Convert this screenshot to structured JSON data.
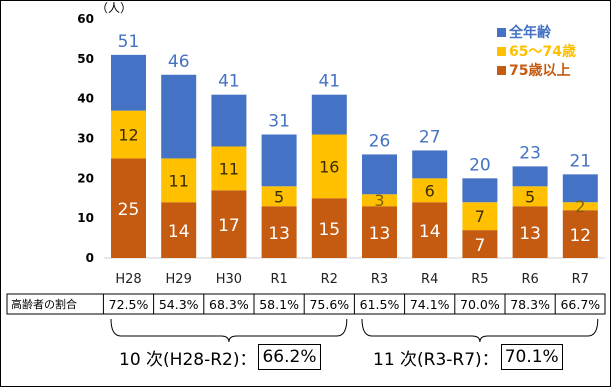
{
  "chart_data": {
    "type": "bar",
    "stacked": true,
    "unit_label": "（人）",
    "ylim": [
      0,
      60
    ],
    "yticks": [
      0,
      10,
      20,
      30,
      40,
      50,
      60
    ],
    "grid": false,
    "legend_position": "top-right",
    "categories": [
      "H28",
      "H29",
      "H30",
      "R1",
      "R2",
      "R3",
      "R4",
      "R5",
      "R6",
      "R7"
    ],
    "totals": {
      "name": "全年齢",
      "color": "#4472C4",
      "label_color": "#4472C4",
      "values": [
        51,
        46,
        41,
        31,
        41,
        26,
        27,
        20,
        23,
        21
      ]
    },
    "series": [
      {
        "name": "75歳以上",
        "color": "#C55A11",
        "values": [
          25,
          14,
          17,
          13,
          15,
          13,
          14,
          7,
          13,
          12
        ]
      },
      {
        "name": "65～74歳",
        "color": "#FFC000",
        "values": [
          12,
          11,
          11,
          5,
          16,
          3,
          6,
          7,
          5,
          2
        ]
      }
    ],
    "legend_order": [
      "全年齢",
      "65～74歳",
      "75歳以上"
    ],
    "ratio_row": {
      "label": "高齢者の割合",
      "values": [
        "72.5%",
        "54.3%",
        "68.3%",
        "58.1%",
        "75.6%",
        "61.5%",
        "74.1%",
        "70.0%",
        "78.3%",
        "66.7%"
      ]
    }
  },
  "footnotes": [
    {
      "text": "10 次(H28-R2)：",
      "value": "66.2%"
    },
    {
      "text": "11 次(R3-R7)：",
      "value": "70.1%"
    }
  ]
}
